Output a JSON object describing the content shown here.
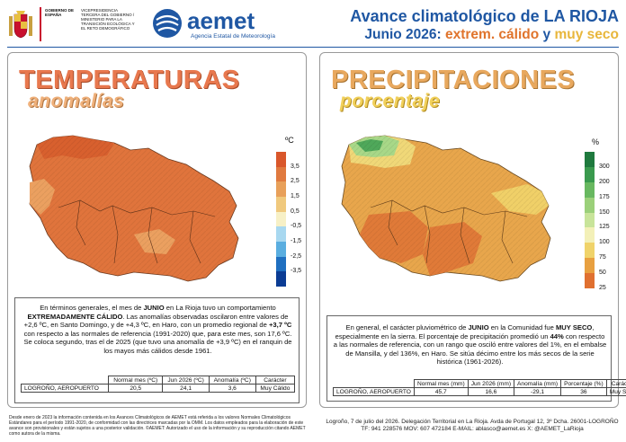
{
  "header": {
    "gov_name": "GOBIERNO DE ESPAÑA",
    "gov_org": "VICEPRESIDENCIA TERCERA DEL GOBIERNO / MINISTERIO PARA LA TRANSICIÓN ECOLÓGICA Y EL RETO DEMOGRÁFICO",
    "agency": "aemet",
    "agency_sub": "Agencia Estatal de Meteorología",
    "title_prefix": "Avance climatológico de",
    "title_region": "LA RIOJA",
    "period": "Junio 2026:",
    "char_temp": "extrem. cálido",
    "char_conj": "y",
    "char_prec": "muy seco"
  },
  "temperature": {
    "title": "TEMPERATURAS",
    "subtitle": "anomalías",
    "unit": "ºC",
    "legend": [
      {
        "label": "3,5",
        "color": "#d9572b"
      },
      {
        "label": "2,5",
        "color": "#e07a3f"
      },
      {
        "label": "1,5",
        "color": "#e8a05a"
      },
      {
        "label": "0,5",
        "color": "#f0c97d"
      },
      {
        "label": "-0,5",
        "color": "#f7f0c6"
      },
      {
        "label": "-1,5",
        "color": "#a8d8f0"
      },
      {
        "label": "-2,5",
        "color": "#5aaee0"
      },
      {
        "label": "-3,5",
        "color": "#1f6fc0"
      }
    ],
    "legend_bottom": "#0b3c94",
    "summary_parts": [
      "En términos generales, el mes de ",
      "JUNIO",
      " en La Rioja tuvo un comportamiento ",
      "EXTREMADAMENTE CÁLIDO",
      ". Las anomalías observadas oscilaron entre valores de +2,6 ºC, en Santo Domingo, y de +4,3 ºC, en Haro, con un promedio regional de ",
      "+3,7 ºC",
      " con respecto a las normales de referencia (1991-2020) que, para este mes, son 17,6 ºC. Se coloca segundo, tras el de 2025 (que tuvo una anomalía de +3,9 ºC) en el ranquin de los mayos más cálidos desde 1961."
    ],
    "table": {
      "headers": [
        "Normal mes (ºC)",
        "Jun 2026 (ºC)",
        "Anomalía (ºC)",
        "Carácter"
      ],
      "station": "LOGROÑO, AEROPUERTO",
      "values": [
        "20,5",
        "24,1",
        "3,6",
        "Muy Cálido"
      ]
    }
  },
  "precipitation": {
    "title": "PRECIPITACIONES",
    "subtitle": "porcentaje",
    "unit": "%",
    "legend": [
      {
        "label": "300",
        "color": "#1f7a3e"
      },
      {
        "label": "200",
        "color": "#3a9a4e"
      },
      {
        "label": "175",
        "color": "#68b860"
      },
      {
        "label": "150",
        "color": "#9bd07a"
      },
      {
        "label": "125",
        "color": "#c8e49a"
      },
      {
        "label": "100",
        "color": "#f3f0b8"
      },
      {
        "label": "75",
        "color": "#f0d36a"
      },
      {
        "label": "50",
        "color": "#e8a040"
      },
      {
        "label": "25",
        "color": "#e07030"
      }
    ],
    "summary_parts": [
      "En general, el carácter pluviométrico de ",
      "JUNIO",
      " en la Comunidad fue ",
      "MUY SECO",
      ", especialmente en la sierra. El porcentaje de precipitación promedió un ",
      "44%",
      " con respecto a las normales de referencia, con un rango que osciló entre valores del 1%, en el embalse de Mansilla, y del 136%, en Haro. Se sitúa décimo entre los más secos de la serie histórica (1961-2026)."
    ],
    "table": {
      "headers": [
        "Normal mes (mm)",
        "Jun 2026 (mm)",
        "Anomalía (mm)",
        "Porcentaje (%)",
        "Carácter"
      ],
      "station": "LOGROÑO, AEROPUERTO",
      "values": [
        "45,7",
        "16,6",
        "-29,1",
        "36",
        "Muy Seco"
      ]
    }
  },
  "footer": {
    "note": "Desde enero de 2023 la información contenida en los Avances Climatológicos de AEMET está referida a los valores Normales Climatológicos Estándares para el período 1991-2020, de conformidad con las directrices marcadas por la OMM. Los datos empleados para la elaboración de este avance son provisionales y están sujetos a una posterior validación. ©AEMET: Autorizado el uso de la información y su reproducción citando AEMET como autora de la misma.",
    "address_line1": "Logroño, 7 de julio del 2026. Delegación Territorial en La Rioja. Avda de Portugal 12, 3º Dcha. 26001-LOGROÑO",
    "address_line2": "TF: 941 228576  MOV: 607 472184  E-MAIL: ablasco@aemet.es  X: @AEMET_LaRioja"
  }
}
